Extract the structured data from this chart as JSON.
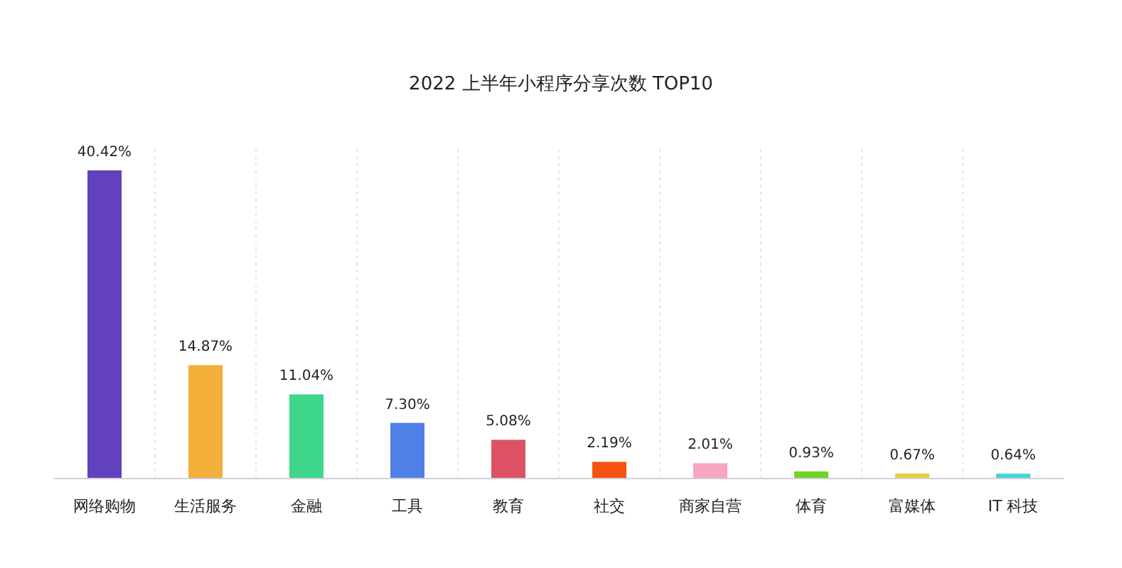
{
  "chart_data": {
    "type": "bar",
    "title": "2022 上半年小程序分享次数 TOP10",
    "categories": [
      "网络购物",
      "生活服务",
      "金融",
      "工具",
      "教育",
      "社交",
      "商家自营",
      "体育",
      "富媒体",
      "IT 科技"
    ],
    "values": [
      40.42,
      14.87,
      11.04,
      7.3,
      5.08,
      2.19,
      2.01,
      0.93,
      0.67,
      0.64
    ],
    "value_labels": [
      "40.42%",
      "14.87%",
      "11.04%",
      "7.30%",
      "5.08%",
      "2.19%",
      "2.01%",
      "0.93%",
      "0.67%",
      "0.64%"
    ],
    "colors": [
      "#6241bd",
      "#f2b03a",
      "#3dd68b",
      "#4f80e8",
      "#dc5263",
      "#f5520f",
      "#f7a5c1",
      "#6fd51f",
      "#e8cf3a",
      "#3fd6d6"
    ],
    "grid": "x"
  }
}
